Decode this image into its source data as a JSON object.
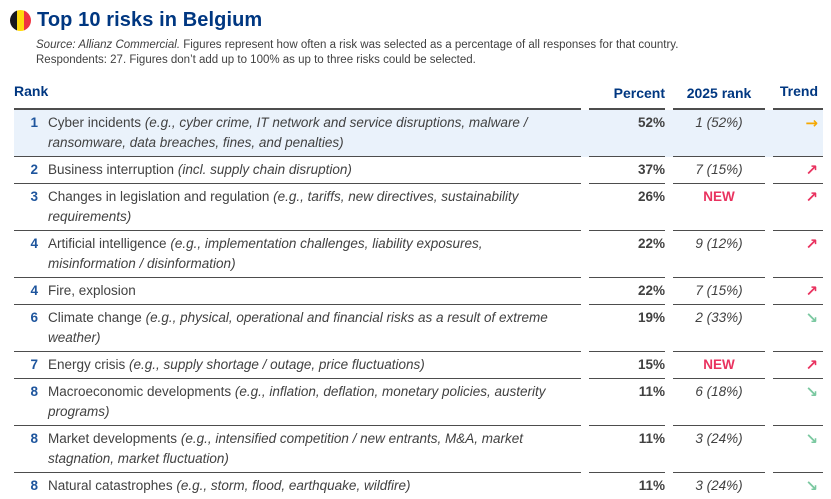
{
  "page": {
    "title": "Top 10 risks in Belgium",
    "source_prefix": "Source: Allianz Commercial.",
    "source_text": " Figures represent how often a risk was selected as a percentage of all responses for that country.",
    "respondents_text": "Respondents: 27. Figures don’t add up to 100% as up to three risks could be selected."
  },
  "flag": {
    "country": "Belgium",
    "stripe_colors": [
      "#17171c",
      "#ffd90c",
      "#ef3340"
    ]
  },
  "colors": {
    "title_blue": "#003781",
    "header_blue": "#003781",
    "rank_blue": "#1e559d",
    "body_text": "#414141",
    "separator": "#4d4d4d",
    "highlight_row": "#eaf2fb",
    "new_pink": "#e9325f",
    "trend_flat": "#f5a800",
    "trend_up": "#e9325f",
    "trend_down": "#7ac8a0"
  },
  "table": {
    "headers": {
      "rank": "Rank",
      "percent": "Percent",
      "rank2025": "2025 rank",
      "trend": "Trend"
    },
    "trend_glyphs": {
      "flat": "→",
      "up": "↗",
      "down": "↘"
    },
    "trend_icon_names": {
      "flat": "arrow-right-icon",
      "up": "arrow-up-right-icon",
      "down": "arrow-down-right-icon"
    },
    "rows": [
      {
        "rank": "1",
        "name": "Cyber incidents",
        "detail": "(e.g., cyber crime, IT network and service disruptions, malware / ransomware, data breaches, fines, and penalties)",
        "percent": "52%",
        "rank2025": "1 (52%)",
        "trend": "flat",
        "highlight": true
      },
      {
        "rank": "2",
        "name": "Business interruption",
        "detail": "(incl. supply chain disruption)",
        "percent": "37%",
        "rank2025": "7 (15%)",
        "trend": "up",
        "highlight": false
      },
      {
        "rank": "3",
        "name": "Changes in legislation and regulation",
        "detail": "(e.g., tariffs, new directives, sustainability requirements)",
        "percent": "26%",
        "rank2025": "NEW",
        "trend": "up",
        "highlight": false
      },
      {
        "rank": "4",
        "name": "Artificial intelligence",
        "detail": "(e.g., implementation challenges, liability exposures, misinformation / disinformation)",
        "percent": "22%",
        "rank2025": "9 (12%)",
        "trend": "up",
        "highlight": false
      },
      {
        "rank": "4",
        "name": "Fire, explosion",
        "detail": "",
        "percent": "22%",
        "rank2025": "7 (15%)",
        "trend": "up",
        "highlight": false
      },
      {
        "rank": "6",
        "name": "Climate change",
        "detail": "(e.g., physical, operational and financial risks as a result of extreme weather)",
        "percent": "19%",
        "rank2025": "2 (33%)",
        "trend": "down",
        "highlight": false
      },
      {
        "rank": "7",
        "name": "Energy crisis",
        "detail": "(e.g., supply shortage / outage, price fluctuations)",
        "percent": "15%",
        "rank2025": "NEW",
        "trend": "up",
        "highlight": false
      },
      {
        "rank": "8",
        "name": "Macroeconomic developments",
        "detail": "(e.g., inflation, deflation, monetary policies, austerity programs)",
        "percent": "11%",
        "rank2025": "6 (18%)",
        "trend": "down",
        "highlight": false
      },
      {
        "rank": "8",
        "name": "Market developments",
        "detail": "(e.g., intensified competition / new entrants, M&A, market stagnation, market fluctuation)",
        "percent": "11%",
        "rank2025": "3 (24%)",
        "trend": "down",
        "highlight": false
      },
      {
        "rank": "8",
        "name": "Natural catastrophes",
        "detail": "(e.g., storm, flood, earthquake, wildfire)",
        "percent": "11%",
        "rank2025": "3 (24%)",
        "trend": "down",
        "highlight": false
      }
    ]
  }
}
